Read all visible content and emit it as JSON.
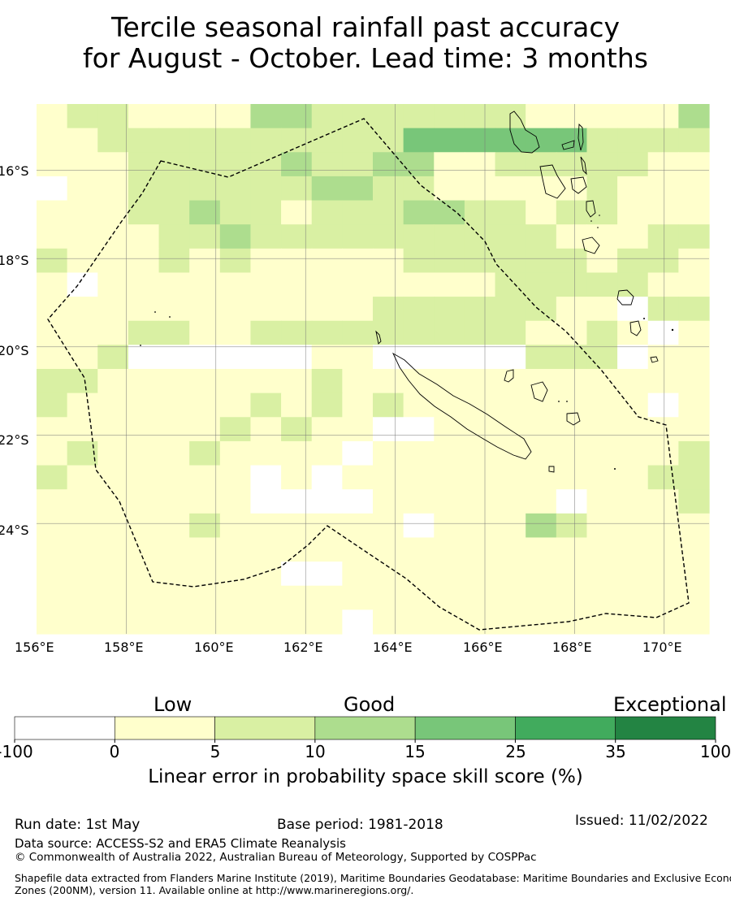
{
  "title": {
    "line1": "Tercile seasonal rainfall past accuracy",
    "line2": "for August - October. Lead time: 3 months"
  },
  "map": {
    "lon_range": [
      156,
      171
    ],
    "lat_range": [
      -14.5,
      -26.5
    ],
    "x_ticks": [
      "156°E",
      "158°E",
      "160°E",
      "162°E",
      "164°E",
      "166°E",
      "168°E",
      "170°E"
    ],
    "y_ticks": [
      "16°S",
      "18°S",
      "20°S",
      "22°S",
      "24°S"
    ],
    "grid": true,
    "skill_grid_rows": [
      "1221111332222222111113",
      "1122222222224444442222",
      "1112222232233112222211",
      "0112222223322111112111",
      "1112232212223322122111",
      "1111223222222222211122",
      "2111212111112222221221",
      "1011111111111112222211",
      "1111111111122222211022",
      "1112211222222222112101",
      "1120000001100000222011",
      "2211111112111111111111",
      "2111111212121111111101",
      "1111112121100111111111",
      "1211121111011111111112",
      "2111111010111111111122",
      "1111111000011111101112",
      "1111121111110111321111",
      "1111111111111111111111",
      "1111111100111111111111",
      "1111111111111111111111",
      "1111111111011111111111"
    ],
    "skill_grid_legend": "digit = colour class index (0: -100 to 0, 1: 0 to 5, 2: 5 to 10, 3: 10 to 15, 4: 15 to 25)"
  },
  "colorbar": {
    "categories": [
      "Low",
      "Good",
      "Exceptional"
    ],
    "bins": [
      {
        "from": -100,
        "to": 0,
        "color": "#ffffff"
      },
      {
        "from": 0,
        "to": 5,
        "color": "#ffffcc"
      },
      {
        "from": 5,
        "to": 10,
        "color": "#d9f0a3"
      },
      {
        "from": 10,
        "to": 15,
        "color": "#addd8e"
      },
      {
        "from": 15,
        "to": 25,
        "color": "#78c679"
      },
      {
        "from": 25,
        "to": 35,
        "color": "#41ab5d"
      },
      {
        "from": 35,
        "to": 100,
        "color": "#238443"
      }
    ],
    "tick_labels": [
      "-100",
      "0",
      "5",
      "10",
      "15",
      "25",
      "35",
      "100"
    ],
    "label": "Linear error in probability space skill score (%)"
  },
  "footer": {
    "run_date": "Run date: 1st May",
    "base_period": "Base period: 1981-2018",
    "issued": "Issued: 11/02/2022",
    "data_source": "Data source: ACCESS-S2 and ERA5 Climate Reanalysis",
    "copyright": "© Commonwealth of Australia 2022, Australian Bureau of Meteorology, Supported by COSPPac",
    "shapefile_line1": "Shapefile data extracted from Flanders Marine Institute (2019), Maritime Boundaries Geodatabase: Maritime Boundaries and Exclusive Economic",
    "shapefile_line2": "Zones (200NM), version 11. Available online at http://www.marineregions.org/."
  }
}
